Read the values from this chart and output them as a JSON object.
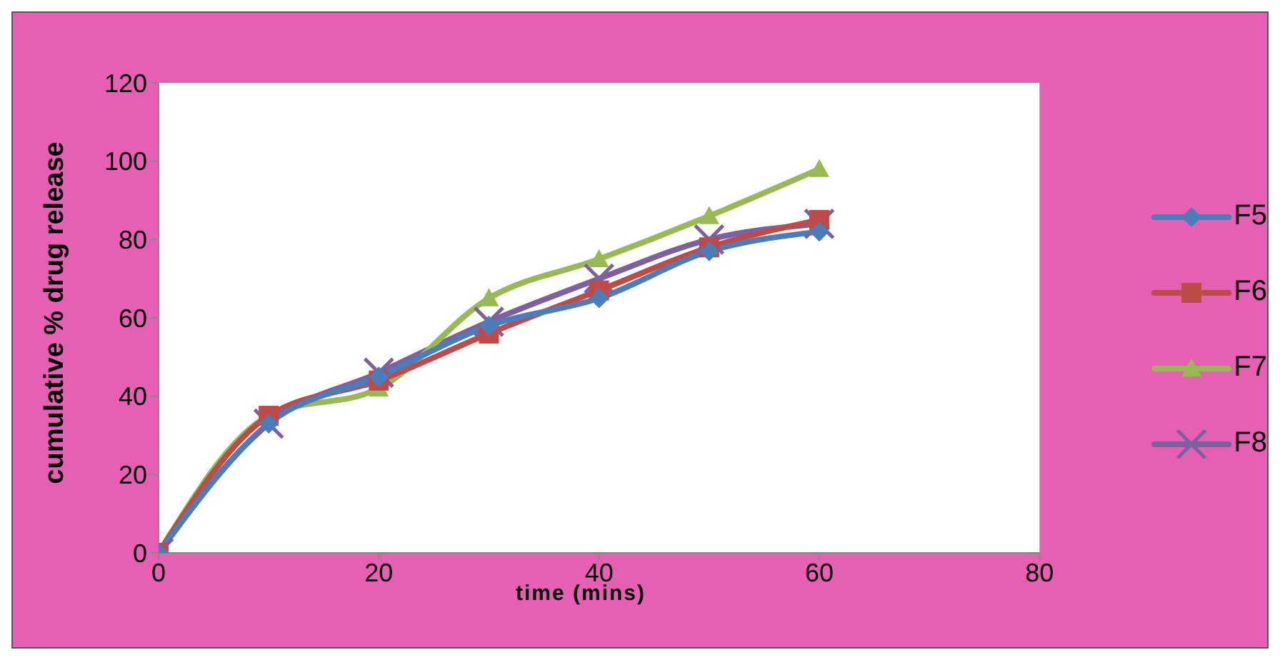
{
  "chart_data": {
    "type": "line",
    "xlabel": "time (mins)",
    "ylabel": "cumulative % drug release",
    "x": [
      0,
      10,
      20,
      30,
      40,
      50,
      60
    ],
    "series": [
      {
        "name": "F5",
        "color": "#4a7ebb",
        "marker": "diamond",
        "values": [
          0,
          33,
          45,
          58,
          65,
          77,
          82
        ]
      },
      {
        "name": "F6",
        "color": "#be4b48",
        "marker": "square",
        "values": [
          0,
          35,
          44,
          56,
          67,
          78,
          85
        ]
      },
      {
        "name": "F7",
        "color": "#98b954",
        "marker": "triangle",
        "values": [
          0,
          35,
          42,
          65,
          75,
          86,
          98
        ]
      },
      {
        "name": "F8",
        "color": "#7d60a0",
        "marker": "cross",
        "values": [
          0,
          33,
          46,
          59,
          70,
          80,
          84
        ]
      }
    ],
    "xlim": [
      0,
      80
    ],
    "xticks": [
      0,
      20,
      40,
      60,
      80
    ],
    "ylim": [
      0,
      120
    ],
    "yticks": [
      0,
      20,
      40,
      60,
      80,
      100,
      120
    ],
    "legend": "right",
    "line_style": "solid"
  }
}
